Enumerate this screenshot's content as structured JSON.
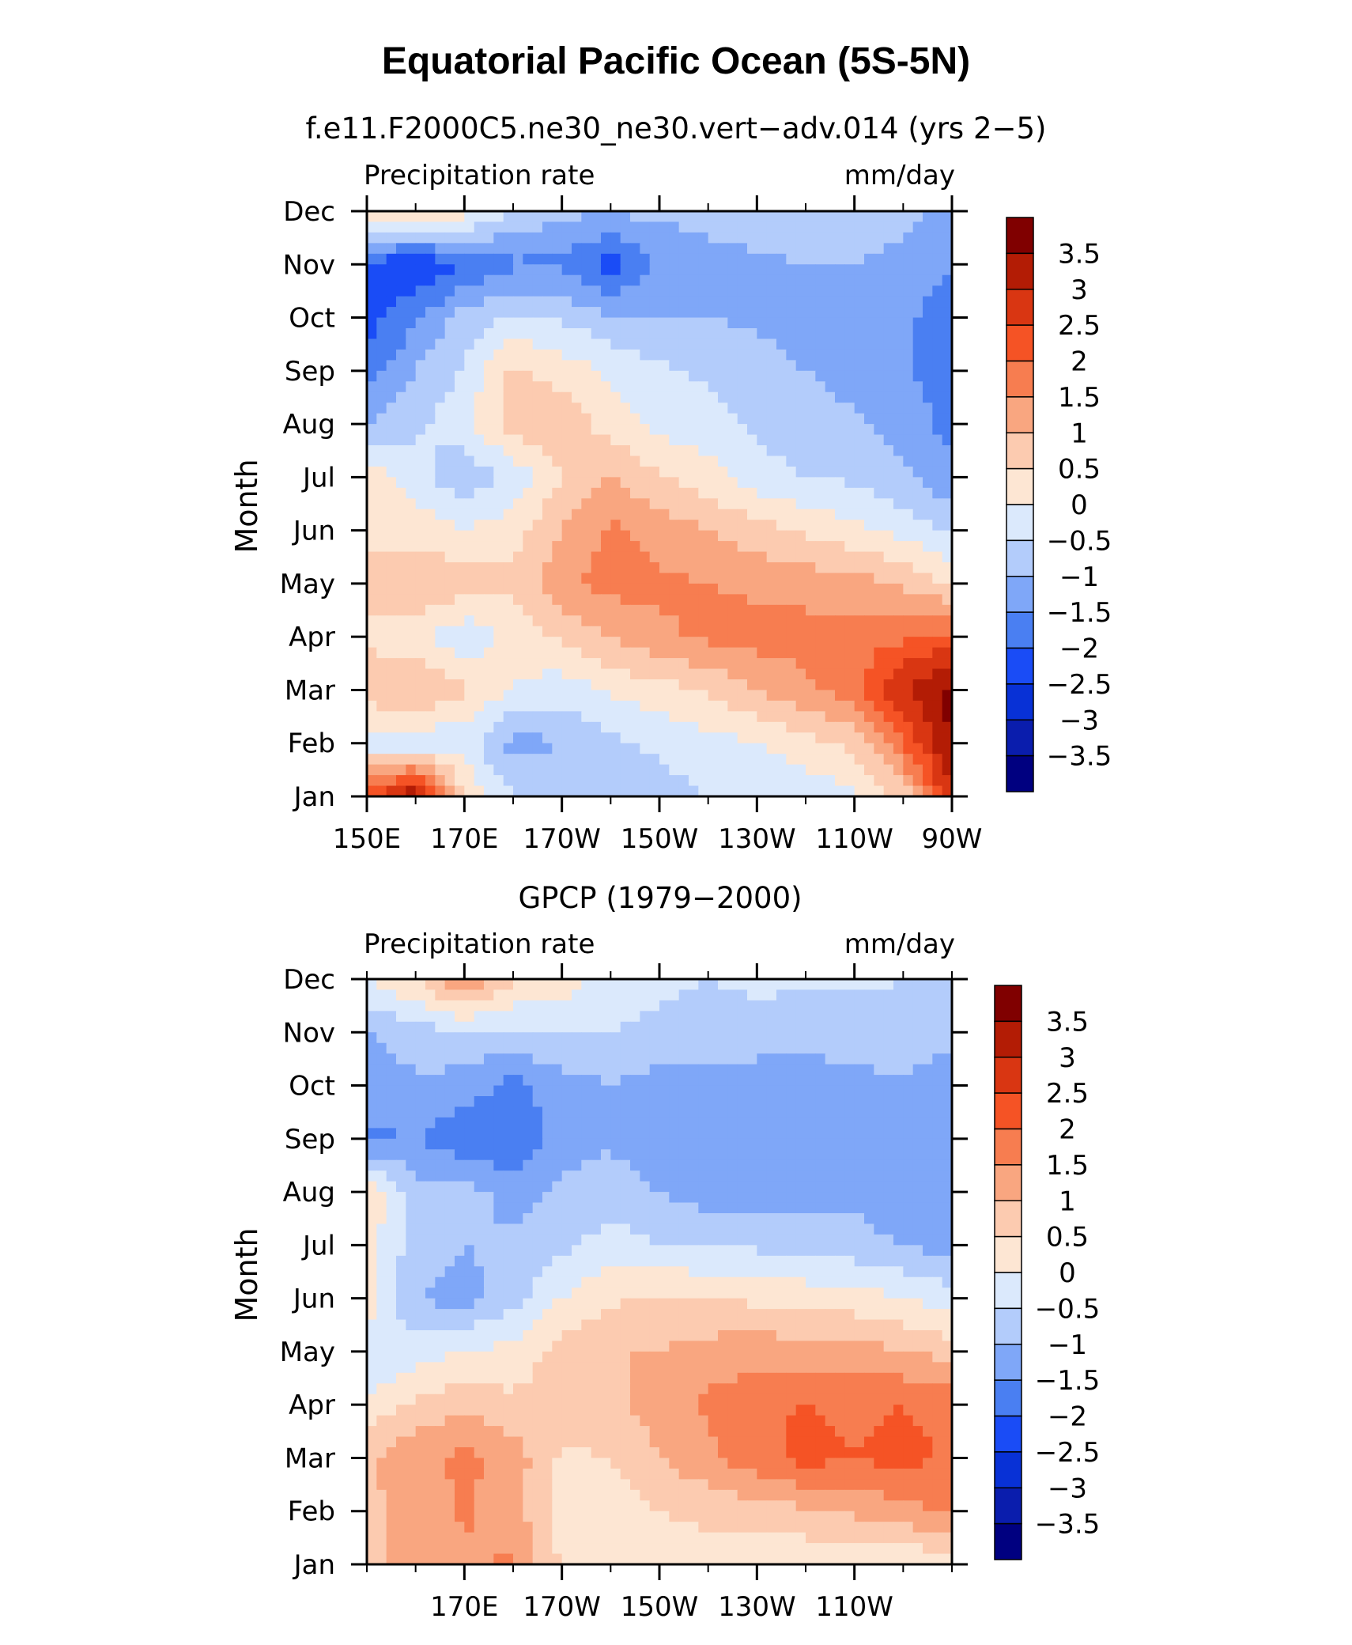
{
  "figure": {
    "title": "Equatorial Pacific Ocean (5S-5N)"
  },
  "colors": {
    "levels": [
      -3.5,
      -3,
      -2.5,
      -2,
      -1.5,
      -1,
      -0.5,
      0,
      0.5,
      1,
      1.5,
      2,
      2.5,
      3,
      3.5
    ],
    "palette": [
      "#000080",
      "#0a1dad",
      "#0831d6",
      "#1a4cf6",
      "#4a7ff2",
      "#7fa7f8",
      "#b3ccfb",
      "#dbe9fc",
      "#fde6d3",
      "#fccbb0",
      "#f9a680",
      "#f77d50",
      "#f55325",
      "#d93612",
      "#b31c05",
      "#800000"
    ],
    "label_texts": [
      "3.5",
      "3",
      "2.5",
      "2",
      "1.5",
      "1",
      "0.5",
      "0",
      "−0.5",
      "−1",
      "−1.5",
      "−2",
      "−2.5",
      "−3",
      "−3.5"
    ]
  },
  "chart_data": [
    {
      "type": "heatmap",
      "subtitle": "f.e11.F2000C5.ne30_ne30.vert−adv.014 (yrs 2−5)",
      "left_label": "Precipitation rate",
      "right_label": "mm/day",
      "ylabel": "Month",
      "xlabel": "",
      "xlim_deg_east": [
        150,
        270
      ],
      "x_ticks": [
        {
          "lon": 150,
          "label": "150E"
        },
        {
          "lon": 170,
          "label": "170E"
        },
        {
          "lon": 190,
          "label": "170W"
        },
        {
          "lon": 210,
          "label": "150W"
        },
        {
          "lon": 230,
          "label": "130W"
        },
        {
          "lon": 250,
          "label": "110W"
        },
        {
          "lon": 270,
          "label": "90W"
        }
      ],
      "y_ticks": [
        "Jan",
        "Feb",
        "Mar",
        "Apr",
        "May",
        "Jun",
        "Jul",
        "Aug",
        "Sep",
        "Oct",
        "Nov",
        "Dec"
      ],
      "x": [
        150,
        160,
        170,
        180,
        190,
        200,
        210,
        220,
        230,
        240,
        250,
        260,
        270
      ],
      "months": [
        "Jan",
        "Feb",
        "Mar",
        "Apr",
        "May",
        "Jun",
        "Jul",
        "Aug",
        "Sep",
        "Oct",
        "Nov",
        "Dec"
      ],
      "z": [
        [
          2.4,
          3.6,
          0.5,
          -0.5,
          -0.6,
          -0.8,
          -0.7,
          -0.5,
          -0.4,
          -0.3,
          -0.1,
          0.6,
          3.0
        ],
        [
          -0.3,
          -0.4,
          -0.3,
          -1.2,
          -1.0,
          -0.6,
          -0.4,
          -0.2,
          0.0,
          0.3,
          0.6,
          2.0,
          3.6
        ],
        [
          0.8,
          1.0,
          0.6,
          0.0,
          -0.3,
          0.1,
          0.3,
          0.6,
          1.0,
          1.4,
          1.8,
          3.0,
          3.7
        ],
        [
          0.4,
          0.2,
          -0.4,
          0.2,
          0.6,
          1.0,
          1.4,
          1.6,
          1.7,
          1.7,
          1.8,
          1.9,
          2.2
        ],
        [
          0.6,
          0.9,
          0.8,
          0.6,
          1.4,
          1.7,
          1.6,
          1.5,
          1.4,
          1.3,
          1.2,
          0.9,
          0.4
        ],
        [
          0.4,
          0.3,
          0.0,
          0.3,
          1.0,
          1.6,
          1.3,
          1.0,
          0.7,
          0.4,
          0.1,
          -0.2,
          -0.6
        ],
        [
          0.3,
          -0.3,
          -0.9,
          -0.4,
          0.5,
          1.0,
          0.6,
          0.2,
          -0.3,
          -0.5,
          -0.6,
          -0.9,
          -1.4
        ],
        [
          -1.0,
          -0.6,
          -0.2,
          0.8,
          0.8,
          0.3,
          -0.2,
          -0.3,
          -0.6,
          -0.8,
          -0.9,
          -1.2,
          -1.7
        ],
        [
          -1.8,
          -1.0,
          -0.4,
          0.6,
          0.3,
          -0.1,
          -0.4,
          -0.6,
          -0.8,
          -1.0,
          -1.2,
          -1.4,
          -1.8
        ],
        [
          -2.2,
          -1.6,
          -0.8,
          -0.4,
          -0.6,
          -0.9,
          -1.0,
          -1.0,
          -1.1,
          -1.2,
          -1.3,
          -1.4,
          -1.8
        ],
        [
          -2.2,
          -2.5,
          -2.0,
          -1.6,
          -1.6,
          -2.3,
          -1.4,
          -1.2,
          -1.1,
          -1.0,
          -1.0,
          -1.1,
          -1.5
        ],
        [
          0.7,
          0.5,
          0.2,
          -0.5,
          -0.9,
          -0.9,
          -0.9,
          -0.8,
          -0.7,
          -0.7,
          -0.8,
          -0.9,
          -1.1
        ]
      ]
    },
    {
      "type": "heatmap",
      "subtitle": "GPCP (1979−2000)",
      "left_label": "Precipitation rate",
      "right_label": "mm/day",
      "ylabel": "Month",
      "xlabel": "",
      "xlim_deg_east": [
        150,
        270
      ],
      "x_ticks": [
        {
          "lon": 170,
          "label": "170E"
        },
        {
          "lon": 190,
          "label": "170W"
        },
        {
          "lon": 210,
          "label": "150W"
        },
        {
          "lon": 230,
          "label": "130W"
        },
        {
          "lon": 250,
          "label": "110W"
        }
      ],
      "y_ticks": [
        "Jan",
        "Feb",
        "Mar",
        "Apr",
        "May",
        "Jun",
        "Jul",
        "Aug",
        "Sep",
        "Oct",
        "Nov",
        "Dec"
      ],
      "x": [
        150,
        160,
        170,
        180,
        190,
        200,
        210,
        220,
        230,
        240,
        250,
        260,
        270
      ],
      "months": [
        "Jan",
        "Feb",
        "Mar",
        "Apr",
        "May",
        "Jun",
        "Jul",
        "Aug",
        "Sep",
        "Oct",
        "Nov",
        "Dec"
      ],
      "z": [
        [
          0.8,
          1.2,
          1.4,
          1.6,
          0.4,
          0.2,
          0.3,
          0.3,
          0.2,
          0.1,
          0.0,
          0.1,
          0.1
        ],
        [
          0.9,
          1.1,
          1.6,
          1.2,
          0.3,
          0.2,
          0.5,
          0.6,
          0.8,
          0.9,
          1.1,
          1.3,
          1.6
        ],
        [
          0.9,
          1.4,
          1.6,
          1.3,
          0.4,
          0.5,
          1.0,
          1.4,
          1.8,
          2.2,
          2.0,
          2.2,
          1.9
        ],
        [
          0.2,
          0.6,
          0.9,
          0.6,
          0.7,
          0.9,
          1.2,
          1.6,
          1.9,
          2.0,
          1.9,
          2.0,
          1.8
        ],
        [
          -0.6,
          -0.3,
          0.0,
          0.2,
          0.7,
          1.0,
          1.0,
          1.2,
          1.3,
          1.2,
          1.2,
          1.0,
          0.8
        ],
        [
          0.4,
          -1.0,
          -1.2,
          -0.7,
          0.0,
          0.4,
          0.6,
          0.5,
          0.4,
          0.3,
          0.2,
          0.0,
          -0.3
        ],
        [
          0.3,
          -0.8,
          -1.0,
          -0.9,
          -0.6,
          -0.3,
          -0.5,
          -0.6,
          -0.6,
          -0.7,
          -0.8,
          -1.0,
          -1.2
        ],
        [
          0.4,
          -0.8,
          -0.8,
          -1.2,
          -0.9,
          -0.7,
          -1.0,
          -1.2,
          -1.3,
          -1.2,
          -1.1,
          -1.4,
          -1.5
        ],
        [
          -1.6,
          -1.5,
          -1.9,
          -2.0,
          -1.2,
          -1.1,
          -1.3,
          -1.4,
          -1.3,
          -1.2,
          -1.1,
          -1.3,
          -1.5
        ],
        [
          -1.3,
          -1.1,
          -1.2,
          -1.7,
          -1.2,
          -1.0,
          -1.2,
          -1.3,
          -1.3,
          -1.3,
          -1.1,
          -1.1,
          -1.3
        ],
        [
          -1.0,
          -0.7,
          -0.6,
          -0.6,
          -0.5,
          -0.5,
          -0.6,
          -0.7,
          -0.7,
          -0.8,
          -0.8,
          -0.7,
          -0.8
        ],
        [
          0.0,
          0.5,
          1.6,
          0.6,
          0.3,
          -0.2,
          -0.4,
          -0.5,
          -0.4,
          -0.4,
          -0.4,
          -0.5,
          -0.6
        ]
      ]
    }
  ]
}
